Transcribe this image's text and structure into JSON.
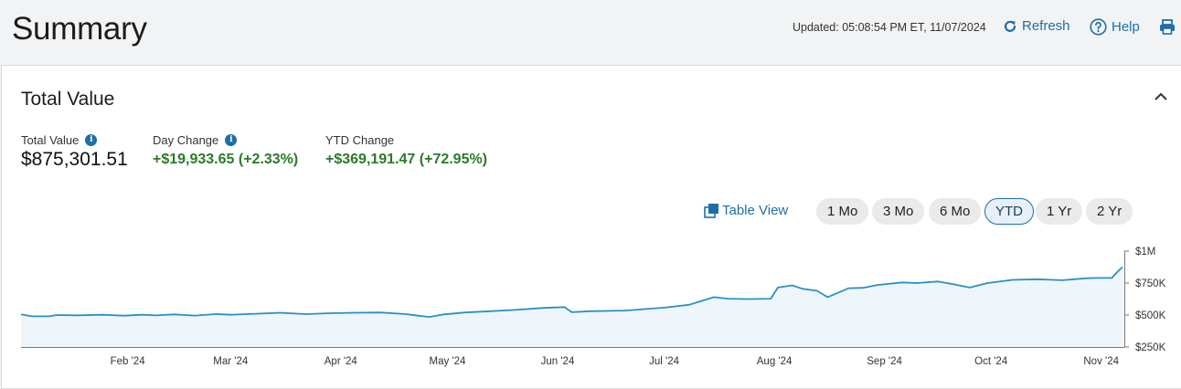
{
  "header": {
    "title": "Summary",
    "updated": "Updated: 05:08:54 PM ET, 11/07/2024",
    "refresh_label": "Refresh",
    "help_label": "Help",
    "print_icon": "printer-icon"
  },
  "card": {
    "title": "Total Value",
    "metrics": [
      {
        "label": "Total Value",
        "value": "$875,301.51",
        "has_info": true
      },
      {
        "label": "Day Change",
        "value": "+$19,933.65 (+2.33%)",
        "has_info": true
      },
      {
        "label": "YTD Change",
        "value": "+$369,191.47 (+72.95%)",
        "has_info": false
      }
    ],
    "table_view_label": "Table View",
    "ranges": [
      "1 Mo",
      "3 Mo",
      "6 Mo",
      "YTD",
      "1 Yr",
      "2 Yr"
    ],
    "active_range": "YTD"
  },
  "colors": {
    "accent": "#1f6ea8",
    "positive": "#2a7a2a",
    "line": "#2b8fc6",
    "area": "#eef6fc"
  },
  "chart_data": {
    "type": "area",
    "title": "",
    "xlabel": "",
    "ylabel": "",
    "x_ticks": [
      "Feb '24",
      "Mar '24",
      "Apr '24",
      "May '24",
      "Jun '24",
      "Jul '24",
      "Aug '24",
      "Sep '24",
      "Oct '24",
      "Nov '24"
    ],
    "y_ticks": [
      "$250K",
      "$500K",
      "$750K",
      "$1M"
    ],
    "ylim": [
      250000,
      1000000
    ],
    "xlim": [
      "2024-01-02",
      "2024-11-07"
    ],
    "axis_position": "right",
    "grid": false,
    "series": [
      {
        "points": [
          [
            "2024-01-02",
            506000
          ],
          [
            "2024-01-05",
            490000
          ],
          [
            "2024-01-10",
            490000
          ],
          [
            "2024-01-12",
            500000
          ],
          [
            "2024-01-18",
            498000
          ],
          [
            "2024-01-25",
            502000
          ],
          [
            "2024-01-31",
            495000
          ],
          [
            "2024-02-05",
            502000
          ],
          [
            "2024-02-09",
            497000
          ],
          [
            "2024-02-14",
            505000
          ],
          [
            "2024-02-20",
            496000
          ],
          [
            "2024-02-26",
            508000
          ],
          [
            "2024-03-01",
            502000
          ],
          [
            "2024-03-08",
            510000
          ],
          [
            "2024-03-15",
            518000
          ],
          [
            "2024-03-22",
            507000
          ],
          [
            "2024-03-29",
            514000
          ],
          [
            "2024-04-05",
            518000
          ],
          [
            "2024-04-12",
            520000
          ],
          [
            "2024-04-19",
            508000
          ],
          [
            "2024-04-22",
            498000
          ],
          [
            "2024-04-26",
            485000
          ],
          [
            "2024-04-30",
            505000
          ],
          [
            "2024-05-06",
            520000
          ],
          [
            "2024-05-13",
            530000
          ],
          [
            "2024-05-20",
            540000
          ],
          [
            "2024-05-24",
            548000
          ],
          [
            "2024-05-28",
            556000
          ],
          [
            "2024-06-03",
            562000
          ],
          [
            "2024-06-05",
            522000
          ],
          [
            "2024-06-10",
            530000
          ],
          [
            "2024-06-20",
            535000
          ],
          [
            "2024-07-01",
            558000
          ],
          [
            "2024-07-08",
            580000
          ],
          [
            "2024-07-15",
            640000
          ],
          [
            "2024-07-19",
            628000
          ],
          [
            "2024-07-25",
            625000
          ],
          [
            "2024-07-31",
            628000
          ],
          [
            "2024-08-02",
            715000
          ],
          [
            "2024-08-06",
            732000
          ],
          [
            "2024-08-09",
            705000
          ],
          [
            "2024-08-13",
            690000
          ],
          [
            "2024-08-16",
            640000
          ],
          [
            "2024-08-22",
            710000
          ],
          [
            "2024-08-26",
            713000
          ],
          [
            "2024-08-30",
            735000
          ],
          [
            "2024-09-06",
            755000
          ],
          [
            "2024-09-10",
            750000
          ],
          [
            "2024-09-16",
            762000
          ],
          [
            "2024-09-20",
            743000
          ],
          [
            "2024-09-25",
            715000
          ],
          [
            "2024-09-30",
            750000
          ],
          [
            "2024-10-07",
            775000
          ],
          [
            "2024-10-14",
            780000
          ],
          [
            "2024-10-21",
            772000
          ],
          [
            "2024-10-28",
            788000
          ],
          [
            "2024-10-31",
            790000
          ],
          [
            "2024-11-04",
            790000
          ],
          [
            "2024-11-06",
            850000
          ],
          [
            "2024-11-07",
            875000
          ]
        ]
      }
    ]
  }
}
